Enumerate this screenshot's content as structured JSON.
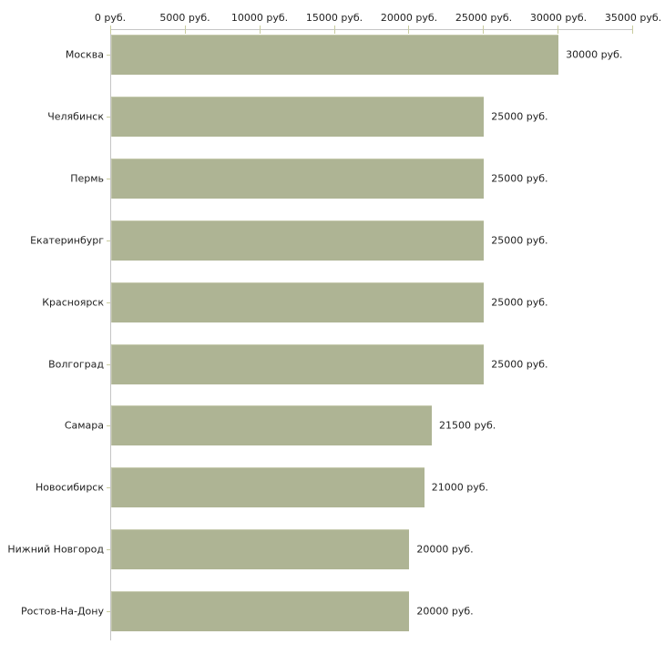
{
  "chart_data": {
    "type": "bar",
    "orientation": "horizontal",
    "title": "",
    "xlabel": "",
    "ylabel": "",
    "unit": "руб.",
    "xlim": [
      0,
      35000
    ],
    "grid": false,
    "legend": "none",
    "categories": [
      "Москва",
      "Челябинск",
      "Пермь",
      "Екатеринбург",
      "Красноярск",
      "Волгоград",
      "Самара",
      "Новосибирск",
      "Нижний Новгород",
      "Ростов-На-Дону"
    ],
    "values": [
      30000,
      25000,
      25000,
      25000,
      25000,
      25000,
      21500,
      21000,
      20000,
      20000
    ],
    "value_labels": [
      "30000 руб.",
      "25000 руб.",
      "25000 руб.",
      "25000 руб.",
      "25000 руб.",
      "25000 руб.",
      "21500 руб.",
      "21000 руб.",
      "20000 руб.",
      "20000 руб."
    ],
    "x_tick_values": [
      0,
      5000,
      10000,
      15000,
      20000,
      25000,
      30000,
      35000
    ],
    "x_tick_labels": [
      "0 руб.",
      "5000 руб.",
      "10000 руб.",
      "15000 руб.",
      "20000 руб.",
      "25000 руб.",
      "30000 руб.",
      "35000 руб."
    ],
    "colors": {
      "bar": "#aeb494",
      "bar_highlight": "#c6caae",
      "axis_line": "#c5c5c5",
      "tick_mark": "#c9cc9e",
      "text": "#222222",
      "background": "#ffffff"
    }
  }
}
